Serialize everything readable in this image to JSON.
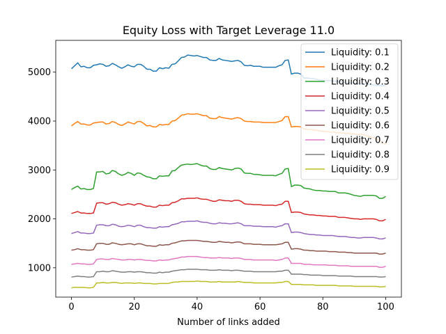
{
  "chart_data": {
    "type": "line",
    "title": "Equity Loss with Target Leverage 11.0",
    "xlabel": "Number of links added",
    "ylabel": "",
    "xlim": [
      -5,
      105
    ],
    "ylim": [
      400,
      5650
    ],
    "x_ticks": [
      0,
      20,
      40,
      60,
      80,
      100
    ],
    "y_ticks": [
      1000,
      2000,
      3000,
      4000,
      5000
    ],
    "grid": false,
    "legend_position": "upper right",
    "x": [
      0,
      1,
      2,
      3,
      4,
      5,
      6,
      7,
      8,
      9,
      10,
      11,
      12,
      13,
      14,
      15,
      16,
      17,
      18,
      19,
      20,
      21,
      22,
      23,
      24,
      25,
      26,
      27,
      28,
      29,
      30,
      31,
      32,
      33,
      34,
      35,
      36,
      37,
      38,
      39,
      40,
      41,
      42,
      43,
      44,
      45,
      46,
      47,
      48,
      49,
      50,
      51,
      52,
      53,
      54,
      55,
      56,
      57,
      58,
      59,
      60,
      61,
      62,
      63,
      64,
      65,
      66,
      67,
      68,
      69,
      70,
      71,
      72,
      73,
      74,
      75,
      76,
      77,
      78,
      79,
      80,
      81,
      82,
      83,
      84,
      85,
      86,
      87,
      88,
      89,
      90,
      91,
      92,
      93,
      94,
      95,
      96,
      97,
      98,
      99,
      100
    ],
    "series": [
      {
        "name": "Liquidity: 0.1",
        "color": "#1f77b4",
        "values": [
          5070,
          5130,
          5190,
          5110,
          5120,
          5090,
          5090,
          5140,
          5150,
          5170,
          5160,
          5120,
          5130,
          5180,
          5150,
          5110,
          5080,
          5110,
          5150,
          5120,
          5110,
          5160,
          5160,
          5120,
          5060,
          5060,
          5020,
          5020,
          5090,
          5070,
          5090,
          5080,
          5160,
          5170,
          5230,
          5300,
          5310,
          5350,
          5340,
          5330,
          5340,
          5320,
          5300,
          5300,
          5250,
          5240,
          5240,
          5280,
          5250,
          5240,
          5230,
          5220,
          5230,
          5240,
          5210,
          5140,
          5130,
          5140,
          5120,
          5120,
          5120,
          5100,
          5100,
          5100,
          5100,
          5100,
          5130,
          5150,
          5240,
          5250,
          4960,
          4980,
          4980,
          4960,
          4880,
          4880,
          4870,
          4870,
          4850,
          4840,
          4830,
          4830,
          4830,
          4820,
          4810,
          4810,
          4800,
          4790,
          4790,
          4780,
          4770,
          4770,
          4760,
          4760,
          4750,
          4750,
          4740,
          4730,
          4730,
          4720,
          4720
        ]
      },
      {
        "name": "Liquidity: 0.2",
        "color": "#ff7f0e",
        "values": [
          3900,
          3950,
          3990,
          3940,
          3940,
          3920,
          3920,
          3960,
          3970,
          3980,
          3980,
          3940,
          3950,
          3990,
          3970,
          3930,
          3910,
          3940,
          3980,
          3960,
          3940,
          3990,
          3990,
          3950,
          3900,
          3910,
          3880,
          3880,
          3930,
          3920,
          3930,
          3930,
          4000,
          4010,
          4060,
          4120,
          4130,
          4150,
          4140,
          4140,
          4150,
          4130,
          4110,
          4110,
          4060,
          4050,
          4050,
          4090,
          4070,
          4060,
          4050,
          4040,
          4060,
          4070,
          4050,
          4000,
          3990,
          3990,
          3980,
          3980,
          3980,
          3970,
          3970,
          3970,
          3970,
          3970,
          3990,
          4010,
          4090,
          4090,
          3880,
          3890,
          3890,
          3880,
          3840,
          3830,
          3830,
          3820,
          3810,
          3800,
          3790,
          3790,
          3780,
          3770,
          3770,
          3760,
          3760,
          3750,
          3750,
          3740,
          3740,
          3730,
          3730,
          3720,
          3700,
          3680,
          3660,
          3630,
          3600,
          3560,
          3520
        ]
      },
      {
        "name": "Liquidity: 0.3",
        "color": "#2ca02c",
        "values": [
          2600,
          2640,
          2670,
          2610,
          2620,
          2600,
          2600,
          2620,
          2960,
          2960,
          2970,
          2920,
          2930,
          2990,
          2970,
          2920,
          2890,
          2910,
          2950,
          2930,
          2890,
          2940,
          2930,
          2890,
          2860,
          2850,
          2820,
          2820,
          2880,
          2870,
          2880,
          2880,
          2980,
          2990,
          3050,
          3100,
          3110,
          3120,
          3110,
          3120,
          3130,
          3100,
          3080,
          3080,
          3030,
          3010,
          3010,
          3050,
          3030,
          3020,
          3010,
          3000,
          3030,
          3040,
          3020,
          2940,
          2930,
          2930,
          2910,
          2910,
          2900,
          2890,
          2890,
          2890,
          2890,
          2880,
          2910,
          2930,
          3020,
          3030,
          2660,
          2690,
          2690,
          2680,
          2630,
          2620,
          2610,
          2590,
          2580,
          2580,
          2570,
          2570,
          2560,
          2560,
          2560,
          2530,
          2530,
          2530,
          2520,
          2500,
          2480,
          2470,
          2460,
          2480,
          2480,
          2480,
          2480,
          2470,
          2420,
          2420,
          2460
        ]
      },
      {
        "name": "Liquidity: 0.4",
        "color": "#d62728",
        "values": [
          2110,
          2130,
          2150,
          2120,
          2120,
          2110,
          2110,
          2120,
          2320,
          2330,
          2330,
          2300,
          2310,
          2340,
          2330,
          2300,
          2280,
          2290,
          2310,
          2300,
          2280,
          2310,
          2310,
          2280,
          2260,
          2260,
          2240,
          2240,
          2280,
          2270,
          2280,
          2280,
          2330,
          2340,
          2370,
          2410,
          2410,
          2420,
          2420,
          2420,
          2430,
          2410,
          2400,
          2400,
          2380,
          2360,
          2360,
          2390,
          2380,
          2370,
          2370,
          2360,
          2380,
          2380,
          2360,
          2310,
          2300,
          2300,
          2290,
          2290,
          2290,
          2280,
          2280,
          2280,
          2280,
          2270,
          2290,
          2300,
          2360,
          2360,
          2130,
          2140,
          2140,
          2130,
          2100,
          2090,
          2080,
          2080,
          2070,
          2070,
          2060,
          2060,
          2050,
          2050,
          2050,
          2030,
          2030,
          2030,
          2020,
          2010,
          2000,
          2000,
          1990,
          2000,
          2000,
          2000,
          2000,
          1990,
          1960,
          1960,
          1990
        ]
      },
      {
        "name": "Liquidity: 0.5",
        "color": "#9467bd",
        "values": [
          1700,
          1720,
          1740,
          1710,
          1710,
          1700,
          1700,
          1710,
          1870,
          1880,
          1880,
          1860,
          1860,
          1890,
          1880,
          1850,
          1840,
          1850,
          1870,
          1860,
          1840,
          1870,
          1870,
          1840,
          1820,
          1820,
          1810,
          1810,
          1840,
          1830,
          1840,
          1840,
          1880,
          1890,
          1910,
          1940,
          1940,
          1950,
          1950,
          1950,
          1960,
          1940,
          1930,
          1930,
          1910,
          1900,
          1900,
          1920,
          1910,
          1910,
          1900,
          1900,
          1910,
          1920,
          1900,
          1860,
          1860,
          1860,
          1850,
          1850,
          1850,
          1840,
          1840,
          1840,
          1840,
          1830,
          1850,
          1860,
          1900,
          1900,
          1720,
          1730,
          1730,
          1720,
          1700,
          1690,
          1680,
          1680,
          1670,
          1670,
          1660,
          1660,
          1660,
          1660,
          1650,
          1640,
          1640,
          1640,
          1630,
          1620,
          1620,
          1610,
          1610,
          1620,
          1620,
          1620,
          1620,
          1610,
          1590,
          1590,
          1610
        ]
      },
      {
        "name": "Liquidity: 0.6",
        "color": "#8c564b",
        "values": [
          1360,
          1370,
          1390,
          1370,
          1370,
          1360,
          1360,
          1370,
          1490,
          1500,
          1500,
          1480,
          1480,
          1510,
          1500,
          1480,
          1470,
          1480,
          1490,
          1490,
          1470,
          1490,
          1490,
          1470,
          1450,
          1450,
          1440,
          1440,
          1470,
          1460,
          1470,
          1470,
          1500,
          1510,
          1530,
          1550,
          1550,
          1560,
          1560,
          1560,
          1560,
          1550,
          1540,
          1540,
          1530,
          1520,
          1520,
          1540,
          1530,
          1520,
          1520,
          1510,
          1520,
          1530,
          1520,
          1490,
          1490,
          1490,
          1480,
          1480,
          1480,
          1470,
          1470,
          1470,
          1470,
          1470,
          1480,
          1490,
          1520,
          1520,
          1380,
          1390,
          1390,
          1380,
          1360,
          1360,
          1350,
          1350,
          1340,
          1340,
          1340,
          1340,
          1330,
          1330,
          1330,
          1320,
          1320,
          1320,
          1310,
          1310,
          1300,
          1300,
          1300,
          1300,
          1300,
          1300,
          1300,
          1300,
          1280,
          1280,
          1300
        ]
      },
      {
        "name": "Liquidity: 0.7",
        "color": "#e377c2",
        "values": [
          1070,
          1080,
          1090,
          1080,
          1080,
          1070,
          1070,
          1080,
          1170,
          1180,
          1180,
          1170,
          1170,
          1190,
          1180,
          1170,
          1160,
          1160,
          1170,
          1170,
          1160,
          1170,
          1170,
          1160,
          1150,
          1150,
          1140,
          1140,
          1160,
          1150,
          1160,
          1160,
          1180,
          1190,
          1200,
          1220,
          1220,
          1230,
          1230,
          1230,
          1230,
          1220,
          1210,
          1210,
          1200,
          1200,
          1200,
          1210,
          1200,
          1200,
          1200,
          1190,
          1200,
          1200,
          1190,
          1170,
          1170,
          1170,
          1160,
          1160,
          1160,
          1160,
          1160,
          1160,
          1160,
          1150,
          1160,
          1170,
          1200,
          1200,
          1090,
          1090,
          1090,
          1090,
          1070,
          1070,
          1070,
          1060,
          1060,
          1060,
          1060,
          1060,
          1050,
          1050,
          1050,
          1040,
          1040,
          1040,
          1040,
          1030,
          1030,
          1030,
          1030,
          1030,
          1030,
          1030,
          1030,
          1030,
          1010,
          1010,
          1030
        ]
      },
      {
        "name": "Liquidity: 0.8",
        "color": "#7f7f7f",
        "values": [
          810,
          820,
          830,
          820,
          820,
          810,
          810,
          820,
          920,
          920,
          930,
          920,
          920,
          940,
          930,
          920,
          910,
          910,
          920,
          920,
          910,
          920,
          920,
          910,
          900,
          900,
          890,
          890,
          910,
          900,
          910,
          910,
          930,
          940,
          950,
          960,
          960,
          970,
          970,
          970,
          970,
          960,
          960,
          960,
          950,
          950,
          950,
          960,
          950,
          950,
          950,
          940,
          950,
          950,
          940,
          930,
          930,
          930,
          920,
          920,
          920,
          920,
          920,
          920,
          920,
          920,
          930,
          930,
          950,
          950,
          870,
          870,
          870,
          870,
          860,
          860,
          850,
          850,
          850,
          850,
          840,
          840,
          840,
          840,
          840,
          830,
          830,
          830,
          830,
          830,
          820,
          820,
          820,
          820,
          820,
          820,
          820,
          820,
          810,
          810,
          820
        ]
      },
      {
        "name": "Liquidity: 0.9",
        "color": "#bcbd22",
        "values": [
          590,
          600,
          600,
          600,
          600,
          590,
          590,
          600,
          690,
          690,
          700,
          690,
          690,
          700,
          700,
          690,
          680,
          690,
          690,
          690,
          680,
          690,
          690,
          680,
          680,
          680,
          670,
          670,
          680,
          680,
          680,
          680,
          700,
          710,
          710,
          720,
          720,
          720,
          720,
          720,
          730,
          720,
          720,
          720,
          710,
          710,
          710,
          720,
          710,
          710,
          710,
          710,
          710,
          720,
          710,
          700,
          700,
          700,
          690,
          690,
          690,
          690,
          690,
          690,
          690,
          690,
          700,
          700,
          720,
          720,
          660,
          660,
          660,
          660,
          650,
          650,
          650,
          650,
          640,
          640,
          640,
          640,
          640,
          640,
          640,
          630,
          630,
          630,
          630,
          630,
          620,
          620,
          620,
          620,
          620,
          620,
          620,
          620,
          610,
          610,
          620
        ]
      }
    ]
  }
}
